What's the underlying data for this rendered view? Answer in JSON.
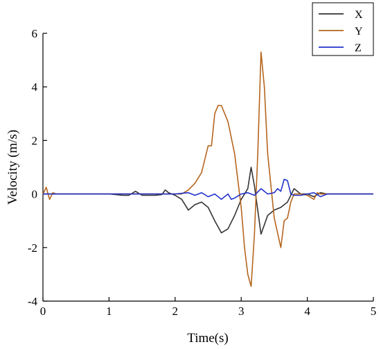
{
  "chart_data": {
    "type": "line",
    "xlabel": "Time(s)",
    "ylabel": "Velocity (m/s)",
    "xlim": [
      0,
      5
    ],
    "ylim": [
      -4,
      6
    ],
    "xticks": [
      0,
      1,
      2,
      3,
      4,
      5
    ],
    "yticks": [
      -4,
      -2,
      0,
      2,
      4,
      6
    ],
    "grid": false,
    "legend": "top-right",
    "series": [
      {
        "name": "X",
        "color": "#333333",
        "points": [
          [
            0,
            0
          ],
          [
            0.1,
            0
          ],
          [
            0.2,
            0
          ],
          [
            0.3,
            0
          ],
          [
            0.4,
            0
          ],
          [
            0.5,
            0
          ],
          [
            0.6,
            0
          ],
          [
            0.7,
            0
          ],
          [
            0.8,
            0
          ],
          [
            0.9,
            0
          ],
          [
            1.0,
            0
          ],
          [
            1.1,
            -0.02
          ],
          [
            1.2,
            -0.05
          ],
          [
            1.3,
            -0.05
          ],
          [
            1.4,
            0.1
          ],
          [
            1.5,
            -0.05
          ],
          [
            1.6,
            -0.05
          ],
          [
            1.7,
            -0.05
          ],
          [
            1.8,
            -0.02
          ],
          [
            1.85,
            0.15
          ],
          [
            1.9,
            0.05
          ],
          [
            2.0,
            -0.05
          ],
          [
            2.1,
            -0.2
          ],
          [
            2.2,
            -0.6
          ],
          [
            2.3,
            -0.4
          ],
          [
            2.4,
            -0.3
          ],
          [
            2.5,
            -0.5
          ],
          [
            2.6,
            -1.0
          ],
          [
            2.7,
            -1.45
          ],
          [
            2.8,
            -1.3
          ],
          [
            2.9,
            -0.8
          ],
          [
            3.0,
            -0.2
          ],
          [
            3.1,
            0.2
          ],
          [
            3.15,
            1.0
          ],
          [
            3.2,
            0.3
          ],
          [
            3.3,
            -1.5
          ],
          [
            3.4,
            -0.8
          ],
          [
            3.5,
            -0.6
          ],
          [
            3.6,
            -0.5
          ],
          [
            3.7,
            -0.3
          ],
          [
            3.8,
            0.2
          ],
          [
            3.9,
            0
          ],
          [
            4.0,
            0
          ],
          [
            4.1,
            -0.1
          ],
          [
            4.2,
            0.05
          ],
          [
            4.3,
            0
          ],
          [
            4.5,
            0
          ],
          [
            4.8,
            0
          ],
          [
            5.0,
            0
          ]
        ]
      },
      {
        "name": "Y",
        "color": "#b5651d",
        "points": [
          [
            0,
            0
          ],
          [
            0.05,
            0.25
          ],
          [
            0.1,
            -0.2
          ],
          [
            0.15,
            0.05
          ],
          [
            0.2,
            0
          ],
          [
            0.5,
            0
          ],
          [
            1.0,
            0
          ],
          [
            1.5,
            0
          ],
          [
            2.0,
            0
          ],
          [
            2.1,
            0
          ],
          [
            2.2,
            0.15
          ],
          [
            2.3,
            0.4
          ],
          [
            2.4,
            0.8
          ],
          [
            2.5,
            1.8
          ],
          [
            2.55,
            1.8
          ],
          [
            2.6,
            3.0
          ],
          [
            2.65,
            3.3
          ],
          [
            2.7,
            3.3
          ],
          [
            2.8,
            2.7
          ],
          [
            2.9,
            1.5
          ],
          [
            3.0,
            -0.5
          ],
          [
            3.05,
            -2.0
          ],
          [
            3.1,
            -3.0
          ],
          [
            3.15,
            -3.45
          ],
          [
            3.2,
            -1.5
          ],
          [
            3.25,
            1.5
          ],
          [
            3.3,
            5.3
          ],
          [
            3.35,
            4.0
          ],
          [
            3.4,
            1.5
          ],
          [
            3.5,
            -0.9
          ],
          [
            3.6,
            -2.0
          ],
          [
            3.65,
            -1.0
          ],
          [
            3.7,
            -0.9
          ],
          [
            3.75,
            -0.3
          ],
          [
            3.8,
            0
          ],
          [
            3.9,
            0
          ],
          [
            4.0,
            -0.05
          ],
          [
            4.1,
            -0.2
          ],
          [
            4.15,
            0.05
          ],
          [
            4.2,
            0
          ],
          [
            4.5,
            0
          ],
          [
            5.0,
            0
          ]
        ]
      },
      {
        "name": "Z",
        "color": "#2233cc",
        "points": [
          [
            0,
            0
          ],
          [
            0.5,
            0
          ],
          [
            1.0,
            0
          ],
          [
            1.5,
            0
          ],
          [
            2.0,
            0
          ],
          [
            2.2,
            0.05
          ],
          [
            2.3,
            -0.05
          ],
          [
            2.4,
            0.05
          ],
          [
            2.5,
            -0.1
          ],
          [
            2.6,
            0
          ],
          [
            2.7,
            -0.2
          ],
          [
            2.8,
            0
          ],
          [
            2.85,
            -0.2
          ],
          [
            2.9,
            -0.15
          ],
          [
            3.0,
            0
          ],
          [
            3.1,
            0.05
          ],
          [
            3.2,
            -0.05
          ],
          [
            3.3,
            0.2
          ],
          [
            3.4,
            0
          ],
          [
            3.5,
            0.05
          ],
          [
            3.55,
            0.2
          ],
          [
            3.6,
            0.1
          ],
          [
            3.65,
            0.55
          ],
          [
            3.7,
            0.5
          ],
          [
            3.75,
            0
          ],
          [
            3.8,
            -0.05
          ],
          [
            3.9,
            -0.05
          ],
          [
            4.0,
            0
          ],
          [
            4.1,
            0.05
          ],
          [
            4.2,
            -0.1
          ],
          [
            4.3,
            0
          ],
          [
            4.5,
            0
          ],
          [
            5.0,
            0
          ]
        ]
      }
    ]
  }
}
